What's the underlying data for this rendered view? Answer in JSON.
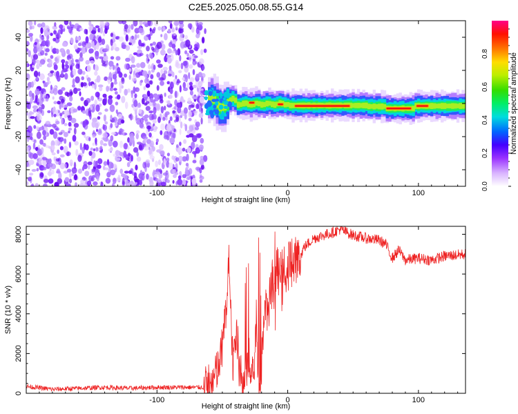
{
  "title": "C2E5.2025.050.08.55.G14",
  "colors": {
    "snr_line": "#ee2222",
    "axis": "#000000"
  },
  "chart_data": [
    {
      "type": "heatmap",
      "title": "C2E5.2025.050.08.55.G14",
      "xlabel": "Height of straight line (km)",
      "ylabel": "Frequency (Hz)",
      "xlim": [
        -200,
        136
      ],
      "ylim": [
        -50,
        50
      ],
      "x_ticks": [
        -100,
        0,
        100
      ],
      "x_tick_labels": [
        "-100",
        "0",
        "100"
      ],
      "y_ticks": [
        -40,
        -20,
        0,
        20,
        40
      ],
      "y_tick_labels": [
        "-40",
        "-20",
        "0",
        "20",
        "40"
      ],
      "colorbar": {
        "label": "Normalized spectral amplitude",
        "range": [
          0,
          1
        ],
        "ticks": [
          0,
          0.2,
          0.4,
          0.6,
          0.8
        ],
        "tick_labels": [
          "0.0",
          "0.2",
          "0.4",
          "0.6",
          "0.8"
        ],
        "colormap": "rainbow (violet to red)"
      },
      "regions": [
        {
          "x_range": [
            -200,
            -63
          ],
          "content": "broadband noise",
          "amplitude": "low (0.0-0.15)"
        },
        {
          "x_range": [
            -63,
            136
          ],
          "content": "narrow signal line near 0 Hz",
          "amplitude": "high (0.5-1.0)"
        }
      ],
      "signal_peak_segments": [
        {
          "x_from": -30,
          "x_to": -25,
          "freq": 0.5,
          "amplitude": 1.0
        },
        {
          "x_from": -8,
          "x_to": -3,
          "freq": -0.5,
          "amplitude": 1.0
        },
        {
          "x_from": 5,
          "x_to": 48,
          "freq": -1.5,
          "amplitude": 1.0
        },
        {
          "x_from": 75,
          "x_to": 95,
          "freq": -3,
          "amplitude": 1.0
        },
        {
          "x_from": 98,
          "x_to": 108,
          "freq": -1.5,
          "amplitude": 1.0
        }
      ]
    },
    {
      "type": "line",
      "xlabel": "Height of straight line (km)",
      "ylabel": "SNR (10 * v/v)",
      "xlim": [
        -200,
        136
      ],
      "ylim": [
        0,
        8400
      ],
      "x_ticks": [
        -100,
        0,
        100
      ],
      "x_tick_labels": [
        "-100",
        "0",
        "100"
      ],
      "y_ticks": [
        0,
        2000,
        4000,
        6000,
        8000
      ],
      "y_tick_labels": [
        "0",
        "2000",
        "4000",
        "6000",
        "8000"
      ],
      "series": [
        {
          "x": [
            -200,
            -180,
            -160,
            -140,
            -120,
            -100,
            -80,
            -64,
            -58,
            -52,
            -48,
            -45,
            -42,
            -40,
            -36,
            -32,
            -30,
            -28,
            -26,
            -24,
            -22,
            -20,
            -18,
            -14,
            -12,
            -10,
            -8,
            -6,
            -4,
            -2,
            0,
            2,
            4,
            8,
            10,
            12,
            15,
            20,
            25,
            30,
            35,
            40,
            45,
            50,
            60,
            70,
            75,
            80,
            85,
            90,
            100,
            110,
            120,
            136
          ],
          "y": [
            350,
            200,
            250,
            300,
            250,
            300,
            300,
            300,
            400,
            1500,
            3500,
            7000,
            1500,
            3000,
            1200,
            500,
            2000,
            400,
            800,
            3500,
            300,
            1500,
            4000,
            4500,
            5500,
            4500,
            6500,
            5500,
            6800,
            5800,
            6400,
            6800,
            6700,
            6800,
            6900,
            7300,
            7500,
            7800,
            7900,
            8000,
            8100,
            8250,
            8100,
            7950,
            7800,
            7700,
            7500,
            6800,
            7200,
            6700,
            6800,
            6700,
            6900,
            7000
          ]
        }
      ]
    }
  ]
}
